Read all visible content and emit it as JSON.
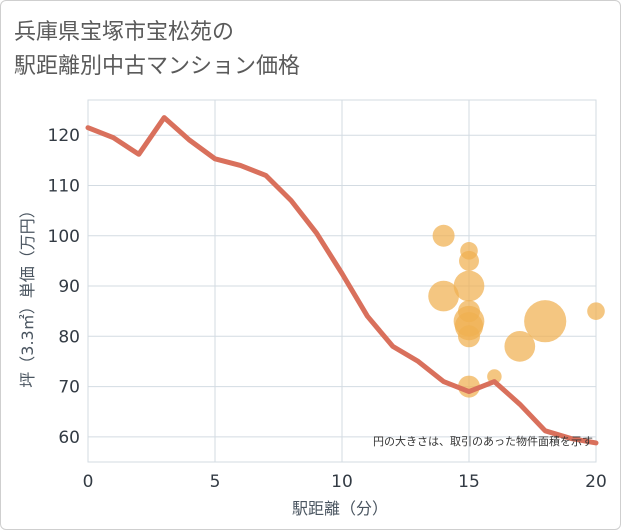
{
  "title": {
    "line1": "兵庫県宝塚市宝松苑の",
    "line2": "駅距離別中古マンション価格"
  },
  "note": "円の大きさは、取引のあった物件面積を示す",
  "colors": {
    "line": "#d9705c",
    "bubble": "#f0b050",
    "grid": "#d3dbe2",
    "plot_bg": "#ffffff"
  },
  "chart_data": {
    "type": "scatter",
    "title": "兵庫県宝塚市宝松苑の駅距離別中古マンション価格",
    "xlabel": "駅距離（分）",
    "ylabel": "坪（3.3㎡）単価（万円）",
    "xlim": [
      0,
      20
    ],
    "ylim": [
      55,
      127
    ],
    "x_ticks": [
      0,
      5,
      10,
      15,
      20
    ],
    "y_ticks": [
      60,
      70,
      80,
      90,
      100,
      110,
      120
    ],
    "grid": true,
    "line_series": {
      "x": [
        0,
        1,
        2,
        3,
        4,
        5,
        6,
        7,
        8,
        9,
        10,
        11,
        12,
        13,
        14,
        15,
        16,
        17,
        18,
        19,
        20
      ],
      "y": [
        121.5,
        119.5,
        116.2,
        123.5,
        119,
        115.3,
        114,
        112,
        107,
        100.5,
        92.5,
        84,
        78,
        75,
        71,
        69,
        71,
        66.5,
        61.2,
        59.7,
        58.8
      ]
    },
    "bubbles": [
      {
        "x": 14,
        "y": 100,
        "size": 2
      },
      {
        "x": 14,
        "y": 88,
        "size": 5
      },
      {
        "x": 15,
        "y": 97,
        "size": 1
      },
      {
        "x": 15,
        "y": 95,
        "size": 1.5
      },
      {
        "x": 15,
        "y": 90,
        "size": 5
      },
      {
        "x": 15,
        "y": 85,
        "size": 2
      },
      {
        "x": 15,
        "y": 83,
        "size": 5
      },
      {
        "x": 15,
        "y": 82,
        "size": 4
      },
      {
        "x": 15,
        "y": 80,
        "size": 2
      },
      {
        "x": 15,
        "y": 70,
        "size": 2
      },
      {
        "x": 16,
        "y": 72,
        "size": 0.5
      },
      {
        "x": 17,
        "y": 78,
        "size": 5
      },
      {
        "x": 18,
        "y": 83,
        "size": 11
      },
      {
        "x": 20,
        "y": 85,
        "size": 1
      }
    ]
  }
}
